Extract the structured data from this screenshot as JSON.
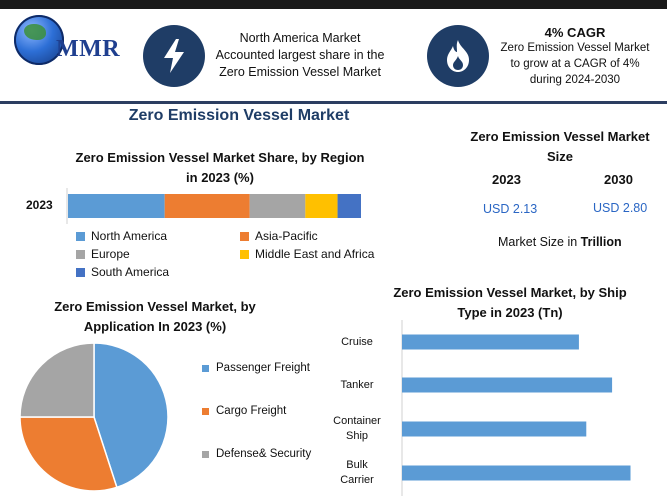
{
  "header": {
    "brand": "MMR",
    "info1": {
      "icon": "lightning-icon",
      "lines": [
        "North America Market",
        "Accounted largest share in the",
        "Zero Emission Vessel Market"
      ]
    },
    "info2": {
      "icon": "flame-icon",
      "title": "4% CAGR",
      "lines": [
        "Zero Emission Vessel Market",
        "to grow at a CAGR of 4%",
        "during 2024-2030"
      ]
    }
  },
  "main_title": "Zero Emission Vessel Market",
  "colors": {
    "blue": "#5b9bd5",
    "orange": "#ed7d31",
    "gray": "#a5a5a5",
    "yellow": "#ffc000",
    "darkblue": "#4472c4",
    "navy": "#1f3d66"
  },
  "market_size": {
    "title_line1": "Zero Emission Vessel Market",
    "title_line2": "Size",
    "year1": "2023",
    "value1": "USD 2.13",
    "year2": "2030",
    "value2": "USD 2.80",
    "note_prefix": "Market Size in ",
    "note_unit": "Trillion"
  },
  "chart_data": [
    {
      "type": "bar",
      "orientation": "horizontal-stacked",
      "title": "Zero Emission Vessel Market Share, by Region in 2023 (%)",
      "title_line1": "Zero Emission Vessel Market Share, by Region",
      "title_line2": "in 2023 (%)",
      "categories": [
        "2023"
      ],
      "series": [
        {
          "name": "North America",
          "color": "#5b9bd5",
          "values": [
            33
          ]
        },
        {
          "name": "Asia-Pacific",
          "color": "#ed7d31",
          "values": [
            29
          ]
        },
        {
          "name": "Europe",
          "color": "#a5a5a5",
          "values": [
            19
          ]
        },
        {
          "name": "Middle East and Africa",
          "color": "#ffc000",
          "values": [
            11
          ]
        },
        {
          "name": "South America",
          "color": "#4472c4",
          "values": [
            8
          ]
        }
      ],
      "legend": "bottom"
    },
    {
      "type": "pie",
      "title": "Zero Emission Vessel Market, by Application In 2023 (%)",
      "title_line1": "Zero Emission Vessel Market, by",
      "title_line2": "Application In 2023 (%)",
      "labels": [
        "Passenger Freight",
        "Cargo Freight",
        "Defense& Security"
      ],
      "values": [
        45,
        30,
        25
      ],
      "colors": [
        "#5b9bd5",
        "#ed7d31",
        "#a5a5a5"
      ],
      "legend": "right"
    },
    {
      "type": "bar",
      "orientation": "horizontal",
      "title": "Zero Emission Vessel Market, by Ship Type in 2023 (Tn)",
      "title_line1": "Zero Emission Vessel Market, by Ship",
      "title_line2": "Type in 2023 (Tn)",
      "categories": [
        "Cruise",
        "Tanker",
        "Container Ship",
        "Bulk Carrier"
      ],
      "category_lines": [
        [
          "Cruise"
        ],
        [
          "Tanker"
        ],
        [
          "Container",
          "Ship"
        ],
        [
          "Bulk",
          "Carrier"
        ]
      ],
      "values": [
        0.48,
        0.57,
        0.5,
        0.62
      ],
      "xlim": [
        0,
        0.7
      ],
      "color": "#5b9bd5"
    }
  ]
}
